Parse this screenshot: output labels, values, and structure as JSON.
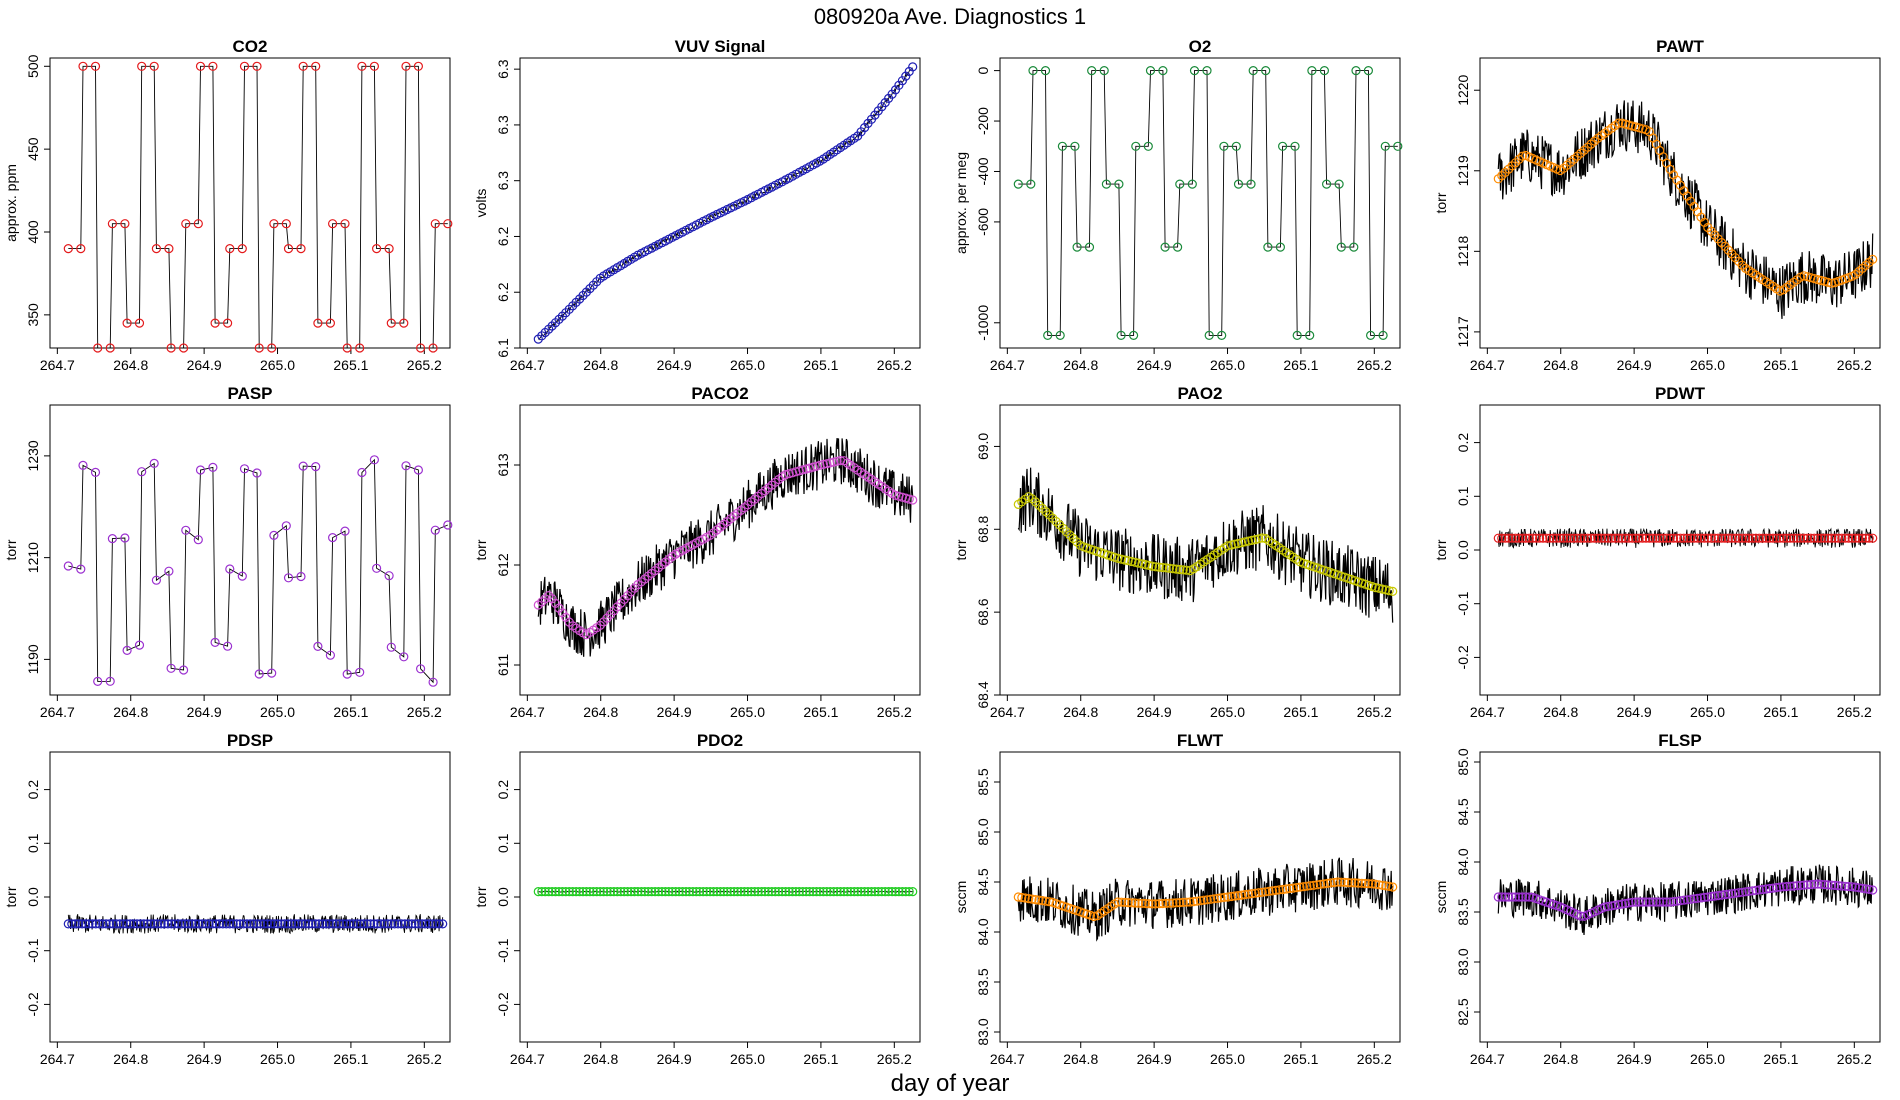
{
  "title": "080920a   Ave. Diagnostics 1",
  "xlabel": "day of year",
  "chart_data": [
    {
      "name": "CO2",
      "type": "line",
      "title": "CO2",
      "ylabel": "approx. ppm",
      "ylim": [
        330,
        505
      ],
      "yticks": [
        350,
        400,
        450,
        500
      ],
      "xlim": [
        264.69,
        265.235
      ],
      "xticks": [
        264.7,
        264.8,
        264.9,
        265.0,
        265.1,
        265.2
      ],
      "marker_color": "#e41a1c",
      "pattern": "square",
      "pattern_levels": [
        330,
        345,
        390,
        405,
        500
      ],
      "x": [
        264.715,
        264.735,
        264.755,
        264.775,
        264.795,
        264.815,
        264.835,
        264.855,
        264.875,
        264.895,
        264.915,
        264.935,
        264.955,
        264.975,
        264.995,
        265.015,
        265.035,
        265.055,
        265.075,
        265.095,
        265.115,
        265.135,
        265.155,
        265.175,
        265.195,
        265.215
      ],
      "noise": 0
    },
    {
      "name": "VUV Signal",
      "type": "line",
      "title": "VUV Signal",
      "ylabel": "volts",
      "ylim": [
        6.1,
        6.36
      ],
      "yticks": [
        6.1,
        6.15,
        6.2,
        6.25,
        6.3,
        6.35
      ],
      "xlim": [
        264.69,
        265.235
      ],
      "xticks": [
        264.7,
        264.8,
        264.9,
        265.0,
        265.1,
        265.2
      ],
      "marker_color": "#1f1fb4",
      "pattern": "curve",
      "x": [
        264.715,
        264.75,
        264.8,
        264.85,
        264.9,
        264.95,
        265.0,
        265.05,
        265.1,
        265.15,
        265.2,
        265.225
      ],
      "y": [
        6.108,
        6.13,
        6.163,
        6.183,
        6.2,
        6.217,
        6.233,
        6.25,
        6.268,
        6.29,
        6.33,
        6.352
      ],
      "noise": 0.002
    },
    {
      "name": "O2",
      "type": "line",
      "title": "O2",
      "ylabel": "approx. per meg",
      "ylim": [
        -1100,
        50
      ],
      "yticks": [
        0,
        -200,
        -400,
        -600,
        -1000
      ],
      "xlim": [
        264.69,
        265.235
      ],
      "xticks": [
        264.7,
        264.8,
        264.9,
        265.0,
        265.1,
        265.2
      ],
      "marker_color": "#1a8a3a",
      "pattern": "square",
      "pattern_levels": [
        -1050,
        -700,
        -450,
        -300,
        0
      ],
      "x": [
        264.715,
        264.735,
        264.755,
        264.775,
        264.795,
        264.815,
        264.835,
        264.855,
        264.875,
        264.895,
        264.915,
        264.935,
        264.955,
        264.975,
        264.995,
        265.015,
        265.035,
        265.055,
        265.075,
        265.095,
        265.115,
        265.135,
        265.155,
        265.175,
        265.195,
        265.215
      ],
      "noise": 0
    },
    {
      "name": "PAWT",
      "type": "line",
      "title": "PAWT",
      "ylabel": "torr",
      "ylim": [
        1216.8,
        1220.4
      ],
      "yticks": [
        1217.0,
        1218.0,
        1219.0,
        1220.0
      ],
      "xlim": [
        264.69,
        265.235
      ],
      "xticks": [
        264.7,
        264.8,
        264.9,
        265.0,
        265.1,
        265.2
      ],
      "marker_color": "#ff8c00",
      "pattern": "curve",
      "x": [
        264.715,
        264.75,
        264.8,
        264.85,
        264.88,
        264.92,
        264.95,
        265.0,
        265.05,
        265.1,
        265.13,
        265.17,
        265.2,
        265.225
      ],
      "y": [
        1218.9,
        1219.2,
        1219.0,
        1219.4,
        1219.6,
        1219.5,
        1219.0,
        1218.3,
        1217.8,
        1217.5,
        1217.7,
        1217.6,
        1217.7,
        1217.9
      ],
      "noise": 0.35
    },
    {
      "name": "PASP",
      "type": "line",
      "title": "PASP",
      "ylabel": "torr",
      "ylim": [
        1183,
        1240
      ],
      "yticks": [
        1190,
        1210,
        1230
      ],
      "xlim": [
        264.69,
        265.235
      ],
      "xticks": [
        264.7,
        264.8,
        264.9,
        265.0,
        265.1,
        265.2
      ],
      "marker_color": "#9b30d0",
      "pattern": "square",
      "pattern_levels": [
        1187,
        1192,
        1207,
        1215,
        1228
      ],
      "x": [
        264.715,
        264.735,
        264.755,
        264.775,
        264.795,
        264.815,
        264.835,
        264.855,
        264.875,
        264.895,
        264.915,
        264.935,
        264.955,
        264.975,
        264.995,
        265.015,
        265.035,
        265.055,
        265.075,
        265.095,
        265.115,
        265.135,
        265.155,
        265.175,
        265.195,
        265.215
      ],
      "noise": 1.5
    },
    {
      "name": "PACO2",
      "type": "line",
      "title": "PACO2",
      "ylabel": "torr",
      "ylim": [
        610.7,
        613.6
      ],
      "yticks": [
        611.0,
        612.0,
        613.0
      ],
      "xlim": [
        264.69,
        265.235
      ],
      "xticks": [
        264.7,
        264.8,
        264.9,
        265.0,
        265.1,
        265.2
      ],
      "marker_color": "#d050d0",
      "pattern": "curve",
      "x": [
        264.715,
        264.73,
        264.76,
        264.78,
        264.8,
        264.85,
        264.9,
        264.95,
        265.0,
        265.05,
        265.1,
        265.13,
        265.16,
        265.2,
        265.225
      ],
      "y": [
        611.6,
        611.7,
        611.4,
        611.3,
        611.4,
        611.8,
        612.1,
        612.3,
        612.6,
        612.9,
        613.0,
        613.05,
        612.9,
        612.7,
        612.65
      ],
      "noise": 0.25
    },
    {
      "name": "PAO2",
      "type": "line",
      "title": "PAO2",
      "ylabel": "torr",
      "ylim": [
        68.4,
        69.1
      ],
      "yticks": [
        68.4,
        68.6,
        68.8,
        69.0
      ],
      "xlim": [
        264.69,
        265.235
      ],
      "xticks": [
        264.7,
        264.8,
        264.9,
        265.0,
        265.1,
        265.2
      ],
      "marker_color": "#c8c800",
      "pattern": "curve",
      "x": [
        264.715,
        264.73,
        264.76,
        264.8,
        264.85,
        264.9,
        264.95,
        265.0,
        265.05,
        265.1,
        265.15,
        265.2,
        265.225
      ],
      "y": [
        68.86,
        68.88,
        68.83,
        68.76,
        68.73,
        68.71,
        68.7,
        68.76,
        68.78,
        68.72,
        68.69,
        68.66,
        68.65
      ],
      "noise": 0.08
    },
    {
      "name": "PDWT",
      "type": "line",
      "title": "PDWT",
      "ylabel": "torr",
      "ylim": [
        -0.27,
        0.27
      ],
      "yticks": [
        -0.2,
        -0.1,
        0.0,
        0.1,
        0.2
      ],
      "xlim": [
        264.69,
        265.235
      ],
      "xticks": [
        264.7,
        264.8,
        264.9,
        265.0,
        265.1,
        265.2
      ],
      "marker_color": "#e41a1c",
      "pattern": "curve",
      "x": [
        264.715,
        265.225
      ],
      "y": [
        0.022,
        0.022
      ],
      "noise": 0.018
    },
    {
      "name": "PDSP",
      "type": "line",
      "title": "PDSP",
      "ylabel": "torr",
      "ylim": [
        -0.27,
        0.27
      ],
      "yticks": [
        -0.2,
        -0.1,
        0.0,
        0.1,
        0.2
      ],
      "xlim": [
        264.69,
        265.235
      ],
      "xticks": [
        264.7,
        264.8,
        264.9,
        265.0,
        265.1,
        265.2
      ],
      "marker_color": "#1f1fb4",
      "pattern": "curve",
      "x": [
        264.715,
        265.225
      ],
      "y": [
        -0.05,
        -0.05
      ],
      "noise": 0.018
    },
    {
      "name": "PDO2",
      "type": "line",
      "title": "PDO2",
      "ylabel": "torr",
      "ylim": [
        -0.27,
        0.27
      ],
      "yticks": [
        -0.2,
        -0.1,
        0.0,
        0.1,
        0.2
      ],
      "xlim": [
        264.69,
        265.235
      ],
      "xticks": [
        264.7,
        264.8,
        264.9,
        265.0,
        265.1,
        265.2
      ],
      "marker_color": "#22cc22",
      "pattern": "curve",
      "x": [
        264.715,
        265.225
      ],
      "y": [
        0.01,
        0.01
      ],
      "noise": 0.001
    },
    {
      "name": "FLWT",
      "type": "line",
      "title": "FLWT",
      "ylabel": "sccm",
      "ylim": [
        82.9,
        85.8
      ],
      "yticks": [
        83.0,
        83.5,
        84.0,
        84.5,
        85.0,
        85.5
      ],
      "xlim": [
        264.69,
        265.235
      ],
      "xticks": [
        264.7,
        264.8,
        264.9,
        265.0,
        265.1,
        265.2
      ],
      "marker_color": "#ff8c00",
      "pattern": "curve",
      "x": [
        264.715,
        264.76,
        264.8,
        264.82,
        264.85,
        264.9,
        264.95,
        265.0,
        265.05,
        265.1,
        265.15,
        265.2,
        265.225
      ],
      "y": [
        84.35,
        84.3,
        84.2,
        84.15,
        84.3,
        84.28,
        84.3,
        84.35,
        84.4,
        84.45,
        84.5,
        84.48,
        84.45
      ],
      "noise": 0.25
    },
    {
      "name": "FLSP",
      "type": "line",
      "title": "FLSP",
      "ylabel": "sccm",
      "ylim": [
        82.2,
        85.1
      ],
      "yticks": [
        82.5,
        83.0,
        83.5,
        84.0,
        84.5,
        85.0
      ],
      "xlim": [
        264.69,
        265.235
      ],
      "xticks": [
        264.7,
        264.8,
        264.9,
        265.0,
        265.1,
        265.2
      ],
      "marker_color": "#9b30d0",
      "pattern": "curve",
      "x": [
        264.715,
        264.76,
        264.8,
        264.83,
        264.86,
        264.9,
        264.95,
        265.0,
        265.05,
        265.1,
        265.15,
        265.2,
        265.225
      ],
      "y": [
        83.65,
        83.65,
        83.55,
        83.45,
        83.55,
        83.6,
        83.6,
        83.65,
        83.7,
        83.75,
        83.78,
        83.75,
        83.72
      ],
      "noise": 0.2
    }
  ]
}
